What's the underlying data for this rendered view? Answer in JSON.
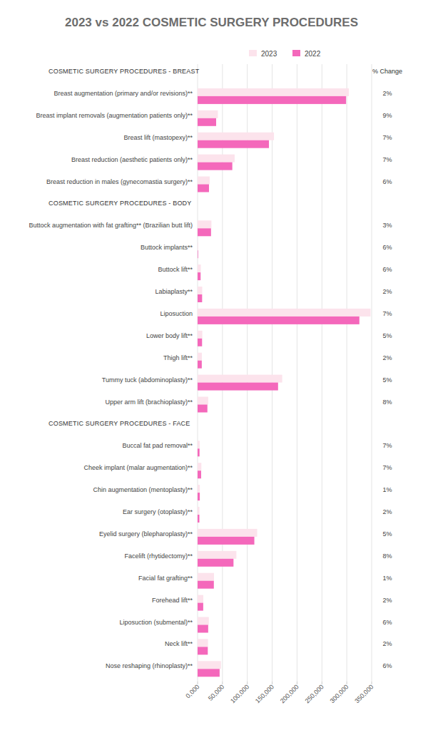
{
  "chart_data": {
    "type": "bar",
    "title": "2023 vs 2022 COSMETIC SURGERY PROCEDURES",
    "orientation": "horizontal",
    "grid": true,
    "legend": "top",
    "categories": [
      "COSMETIC SURGERY PROCEDURES - BREAST",
      "Breast augmentation (primary and/or revisions)**",
      "Breast implant removals (augmentation patients only)**",
      "Breast lift (mastopexy)**",
      "Breast reduction (aesthetic patients only)**",
      "Breast reduction in males (gynecomastia surgery)**",
      "COSMETIC SURGERY PROCEDURES - BODY",
      "Buttock augmentation with fat grafting** (Brazilian butt lift)",
      "Buttock implants**",
      "Buttock lift**",
      "Labiaplasty**",
      "Liposuction",
      "Lower body lift**",
      "Thigh lift**",
      "Tummy tuck (abdominoplasty)**",
      "Upper arm lift (brachioplasty)**",
      "COSMETIC SURGERY PROCEDURES - FACE",
      "Buccal fat pad removal**",
      "Cheek implant (malar augmentation)**",
      "Chin augmentation (mentoplasty)**",
      "Ear surgery (otoplasty)**",
      "Eyelid surgery (blepharoplasty)**",
      "Facelift (rhytidectomy)**",
      "Facial fat grafting**",
      "Forehead lift**",
      "Liposuction (submental)**",
      "Neck lift**",
      "Nose reshaping (rhinoplasty)**"
    ],
    "series": [
      {
        "name": "2023",
        "color": "#fce3ec",
        "values": [
          null,
          304181,
          40800,
          153600,
          74500,
          24300,
          null,
          27800,
          1100,
          6500,
          9300,
          347782,
          9500,
          8600,
          170110,
          21300,
          null,
          4200,
          7600,
          4500,
          3700,
          119800,
          78000,
          33000,
          11500,
          22600,
          20900,
          47000
        ]
      },
      {
        "name": "2022",
        "color": "#f468bb",
        "values": [
          null,
          298568,
          37300,
          143500,
          69800,
          22900,
          null,
          27000,
          1000,
          6100,
          9100,
          325332,
          9000,
          8400,
          161823,
          19700,
          null,
          3900,
          7100,
          4450,
          3600,
          114100,
          72200,
          32700,
          11300,
          21300,
          20500,
          44300
        ]
      }
    ],
    "change": {
      "title": "% Change",
      "values": [
        null,
        2,
        9,
        7,
        7,
        6,
        null,
        3,
        6,
        6,
        2,
        7,
        5,
        2,
        5,
        8,
        null,
        7,
        7,
        1,
        2,
        5,
        8,
        1,
        2,
        6,
        2,
        6
      ],
      "value_labels": [
        null,
        "2%",
        "9%",
        "7%",
        "7%",
        "6%",
        null,
        "3%",
        "6%",
        "6%",
        "2%",
        "7%",
        "5%",
        "2%",
        "5%",
        "8%",
        null,
        "7%",
        "7%",
        "1%",
        "2%",
        "5%",
        "8%",
        "1%",
        "2%",
        "6%",
        "2%",
        "6%"
      ]
    },
    "xlim": [
      0,
      350000
    ],
    "xticks": [
      {
        "value": 0,
        "label": "0,000"
      },
      {
        "value": 50000,
        "label": "50,000"
      },
      {
        "value": 100000,
        "label": "100,000"
      },
      {
        "value": 150000,
        "label": "150,000"
      },
      {
        "value": 200000,
        "label": "200,000"
      },
      {
        "value": 250000,
        "label": "250,000"
      },
      {
        "value": 300000,
        "label": "300,000"
      },
      {
        "value": 350000,
        "label": "350,000"
      }
    ]
  }
}
